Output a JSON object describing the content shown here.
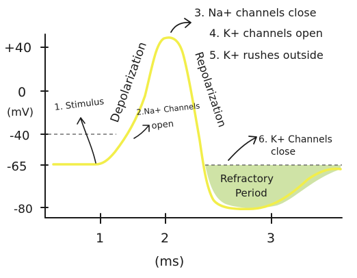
{
  "diagram": {
    "y_axis": {
      "unit": "(mV)",
      "ticks": [
        "+40",
        "0",
        "-40",
        "-65",
        "-80"
      ]
    },
    "x_axis": {
      "unit": "(ms)",
      "ticks": [
        "1",
        "2",
        "3"
      ]
    },
    "phases": {
      "depolarization": "Depolarization",
      "repolarization": "Repolarization",
      "refractory_line1": "Refractory",
      "refractory_line2": "Period"
    },
    "steps": {
      "s1": "1. Stimulus",
      "s2_line1": "2.Na+ Channels",
      "s2_line2": "open",
      "s3": "3. Na+ channels close",
      "s4": "4. K+ channels open",
      "s5": "5. K+ rushes outside",
      "s6_line1": "6. K+ Channels",
      "s6_line2": "close"
    },
    "colors": {
      "curve": "#f2ee4a",
      "refractory_fill": "#cfe3a6",
      "ink": "#1a1a1a"
    }
  }
}
